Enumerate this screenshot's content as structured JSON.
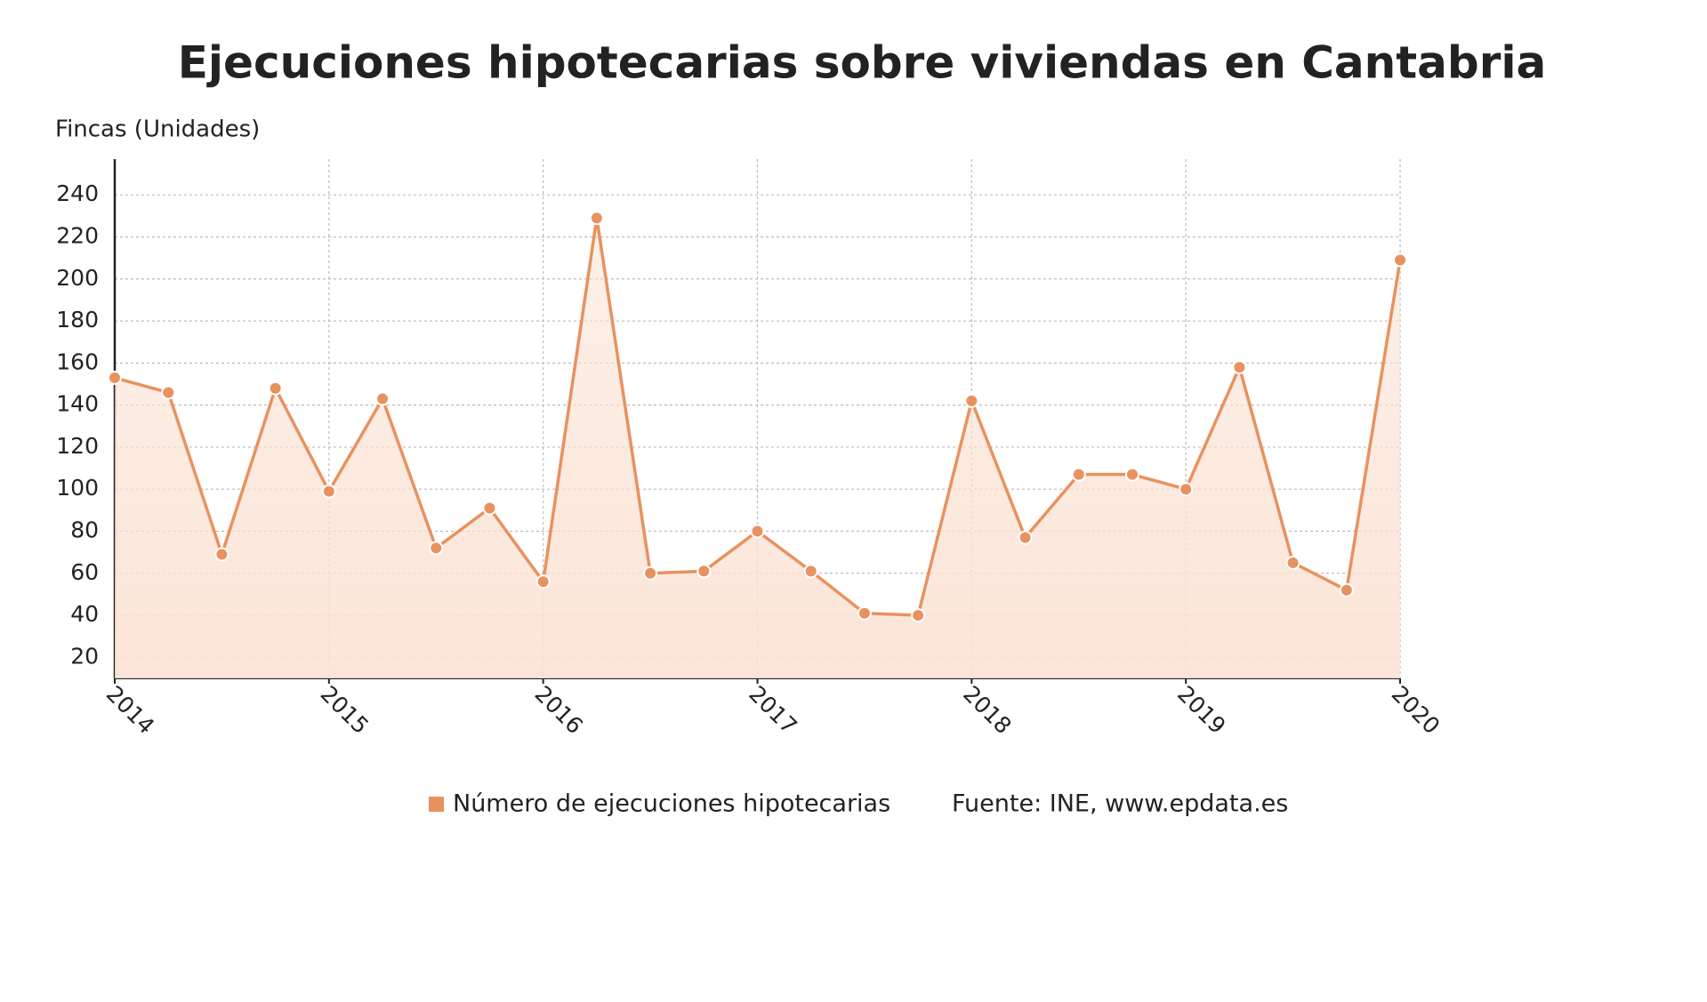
{
  "chart_data": {
    "type": "line",
    "title": "Ejecuciones hipotecarias sobre viviendas en Cantabria",
    "y_label": "Fincas (Unidades)",
    "source": "Fuente: INE, www.epdata.es",
    "x": [
      2014,
      2014.25,
      2014.5,
      2014.75,
      2015,
      2015.25,
      2015.5,
      2015.75,
      2016,
      2016.25,
      2016.5,
      2016.75,
      2017,
      2017.25,
      2017.5,
      2017.75,
      2018,
      2018.25,
      2018.5,
      2018.75,
      2019,
      2019.25,
      2019.5,
      2019.75,
      2020
    ],
    "series": [
      {
        "name": "Número de ejecuciones hipotecarias",
        "color": "#e8925f",
        "values": [
          153,
          146,
          69,
          148,
          99,
          143,
          72,
          91,
          56,
          229,
          60,
          61,
          80,
          61,
          41,
          40,
          142,
          77,
          107,
          107,
          100,
          158,
          65,
          52,
          209
        ]
      }
    ],
    "xlim": [
      2014,
      2020
    ],
    "xticks": [
      2014,
      2015,
      2016,
      2017,
      2018,
      2019,
      2020
    ],
    "ylim": [
      10,
      257
    ],
    "yticks": [
      20,
      40,
      60,
      80,
      100,
      120,
      140,
      160,
      180,
      200,
      220,
      240
    ],
    "grid": true,
    "area": true
  }
}
